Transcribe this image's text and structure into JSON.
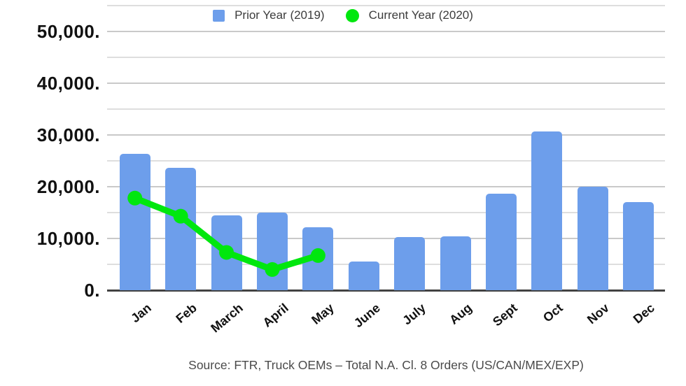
{
  "legend": {
    "items": [
      {
        "label": "Prior Year (2019)",
        "color": "#6d9eeb",
        "shape": "square"
      },
      {
        "label": "Current Year (2020)",
        "color": "#00e70e",
        "shape": "circle"
      }
    ]
  },
  "source_note": "Source: FTR, Truck OEMs – Total N.A. Cl. 8 Orders (US/CAN/MEX/EXP)",
  "chart_data": {
    "type": "combo",
    "categories": [
      "Jan",
      "Feb",
      "March",
      "April",
      "May",
      "June",
      "July",
      "Aug",
      "Sept",
      "Oct",
      "Nov",
      "Dec"
    ],
    "series": [
      {
        "name": "Prior Year (2019)",
        "type": "bar",
        "color": "#6d9eeb",
        "values": [
          26300,
          23700,
          14400,
          15000,
          12100,
          5500,
          10300,
          10400,
          18600,
          30700,
          20000,
          17000
        ]
      },
      {
        "name": "Current Year (2020)",
        "type": "line",
        "color": "#00e70e",
        "values": [
          17800,
          14300,
          7300,
          4000,
          6700,
          null,
          null,
          null,
          null,
          null,
          null,
          null
        ]
      }
    ],
    "ylim": [
      0,
      55000
    ],
    "y_major_ticks": [
      0,
      10000,
      20000,
      30000,
      40000,
      50000
    ],
    "y_tick_labels": [
      "0.",
      "10,000.",
      "20,000.",
      "30,000.",
      "40,000.",
      "50,000."
    ],
    "y_minor_step": 5000,
    "grid": true,
    "legend_position": "top",
    "xlabel": "",
    "ylabel": ""
  }
}
